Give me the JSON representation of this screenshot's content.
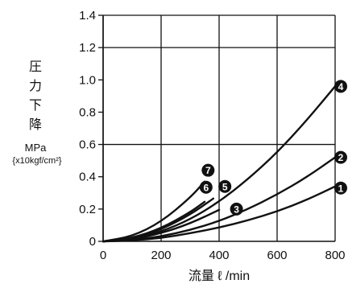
{
  "chart_data": {
    "type": "line",
    "title": "",
    "ylabel_lines": [
      "圧",
      "力",
      "下",
      "降"
    ],
    "ylabel_unit": "MPa",
    "ylabel_sub": "{x10kgf/cm²}",
    "xlabel": "流量 ℓ /min",
    "xlim": [
      0,
      800
    ],
    "ylim": [
      0,
      1.4
    ],
    "xticks": [
      "0",
      "200",
      "400",
      "600",
      "800"
    ],
    "yticks": [
      "0",
      "0.2",
      "0.4",
      "0.6",
      "0.8",
      "1.0",
      "1.2",
      "1.4"
    ],
    "grid": true,
    "series": [
      {
        "name": "1",
        "x": [
          0,
          100,
          200,
          300,
          400,
          500,
          600,
          700,
          800
        ],
        "y": [
          0,
          0.005,
          0.02,
          0.05,
          0.085,
          0.13,
          0.185,
          0.255,
          0.34
        ]
      },
      {
        "name": "2",
        "x": [
          0,
          100,
          200,
          300,
          400,
          500,
          600,
          700,
          800
        ],
        "y": [
          0,
          0.008,
          0.03,
          0.07,
          0.125,
          0.2,
          0.29,
          0.395,
          0.52
        ]
      },
      {
        "name": "3",
        "x": [
          0,
          100,
          200,
          300,
          400
        ],
        "y": [
          0,
          0.012,
          0.05,
          0.11,
          0.195
        ]
      },
      {
        "name": "4",
        "x": [
          0,
          100,
          200,
          300,
          400,
          500,
          600,
          700,
          800
        ],
        "y": [
          0,
          0.015,
          0.06,
          0.135,
          0.245,
          0.385,
          0.55,
          0.745,
          0.96
        ]
      },
      {
        "name": "5",
        "x": [
          0,
          100,
          200,
          300,
          380
        ],
        "y": [
          0,
          0.018,
          0.072,
          0.165,
          0.265
        ]
      },
      {
        "name": "6",
        "x": [
          0,
          100,
          200,
          300,
          350
        ],
        "y": [
          0,
          0.02,
          0.08,
          0.18,
          0.245
        ]
      },
      {
        "name": "7",
        "x": [
          0,
          100,
          200,
          300,
          350
        ],
        "y": [
          0,
          0.03,
          0.12,
          0.27,
          0.37
        ]
      }
    ],
    "labels": [
      {
        "text": "1",
        "x": 820,
        "y": 0.33
      },
      {
        "text": "2",
        "x": 820,
        "y": 0.52
      },
      {
        "text": "3",
        "x": 460,
        "y": 0.2
      },
      {
        "text": "4",
        "x": 820,
        "y": 0.96
      },
      {
        "text": "5",
        "x": 420,
        "y": 0.34
      },
      {
        "text": "6",
        "x": 355,
        "y": 0.335
      },
      {
        "text": "7",
        "x": 362,
        "y": 0.44
      }
    ]
  }
}
